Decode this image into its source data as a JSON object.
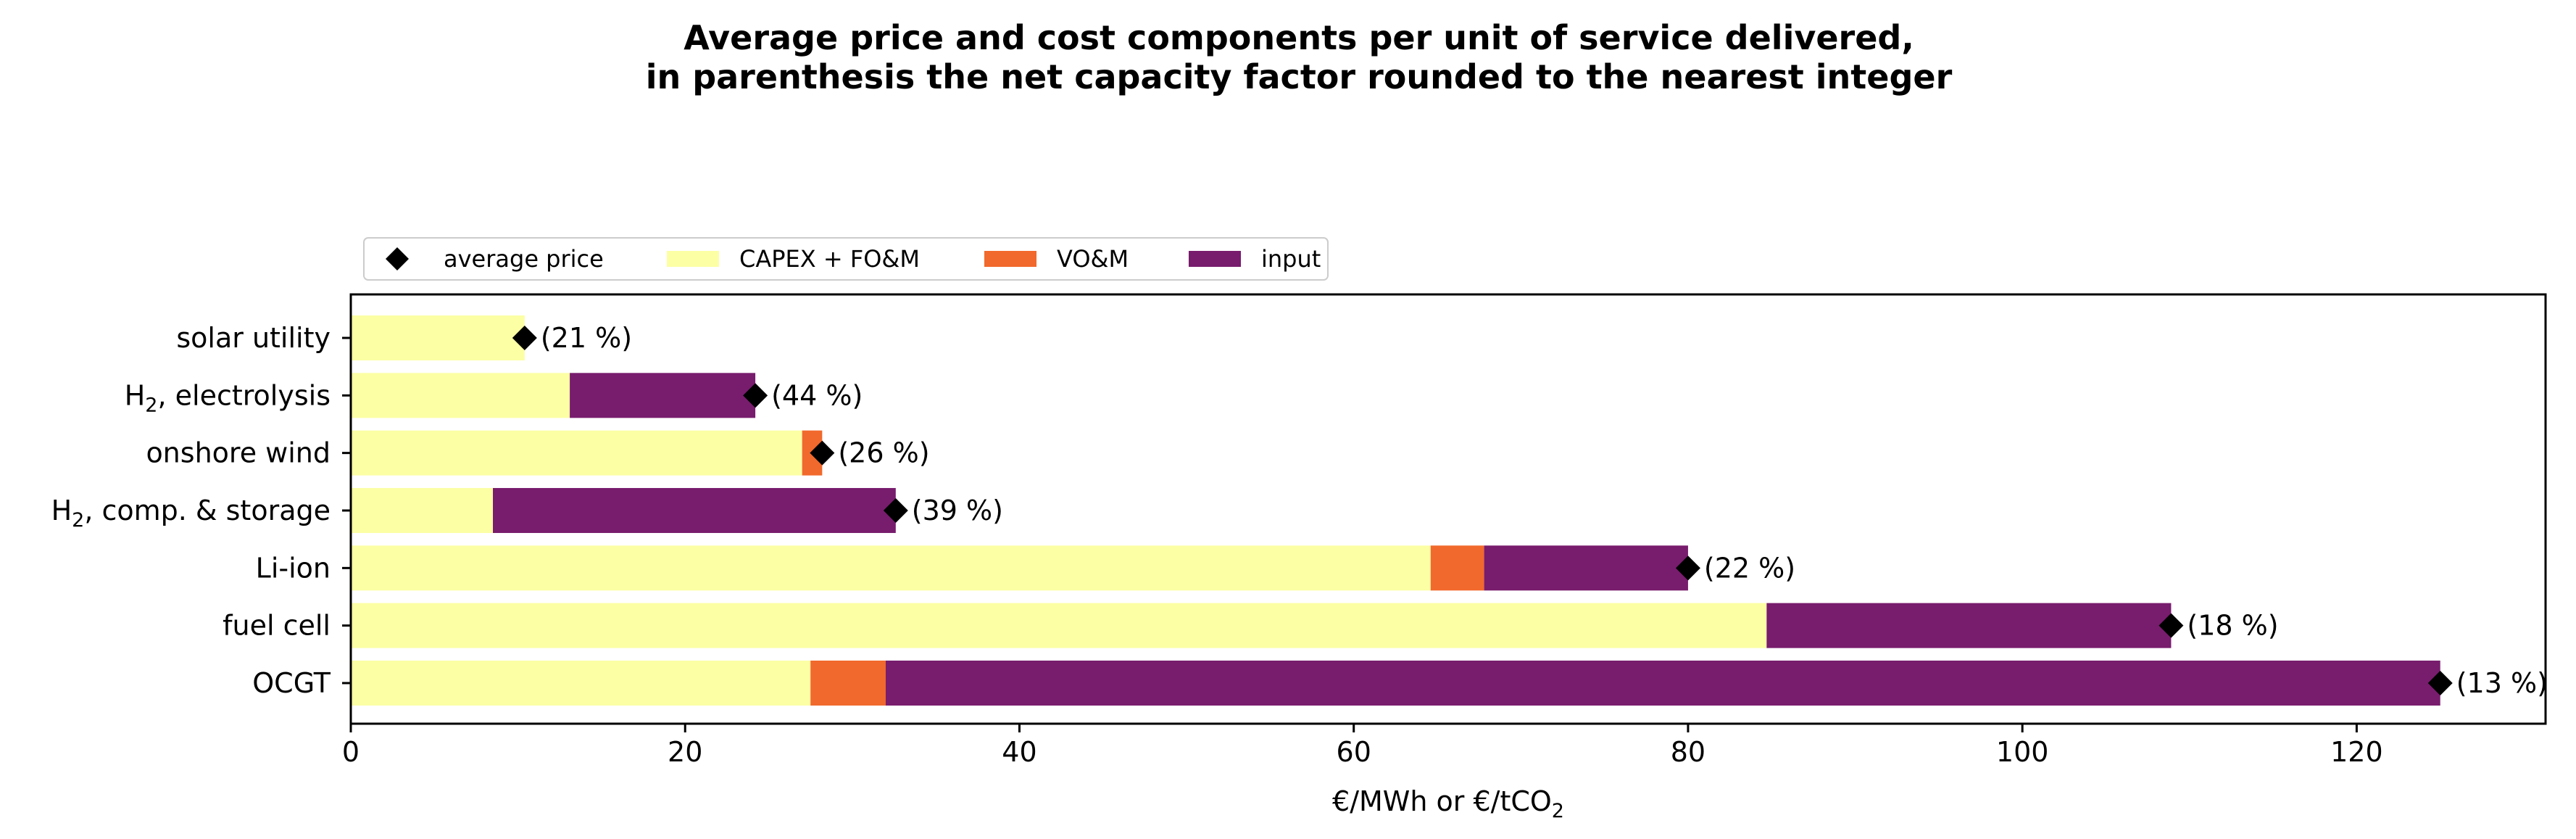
{
  "chart_data": {
    "type": "bar",
    "orientation": "horizontal",
    "stacked": true,
    "title": "Average price and cost components per unit of service delivered,\nin parenthesis the net capacity factor rounded to the nearest integer",
    "xlabel": "€/MWh or €/tCO",
    "xlabel_subscript": "2",
    "ylabel": "",
    "xlim": [
      0,
      131.3
    ],
    "xticks": [
      0,
      20,
      40,
      60,
      80,
      100,
      120
    ],
    "grid": false,
    "legend_position": "top-left",
    "categories": [
      {
        "label": "solar utility",
        "main": "solar utility",
        "sub": "",
        "rest": ""
      },
      {
        "label": "H2, electrolysis",
        "main": "H",
        "sub": "2",
        "rest": ", electrolysis"
      },
      {
        "label": "onshore wind",
        "main": "onshore wind",
        "sub": "",
        "rest": ""
      },
      {
        "label": "H2, comp. & storage",
        "main": "H",
        "sub": "2",
        "rest": ", comp. & storage"
      },
      {
        "label": "Li-ion",
        "main": "Li-ion",
        "sub": "",
        "rest": ""
      },
      {
        "label": "fuel cell",
        "main": "fuel cell",
        "sub": "",
        "rest": ""
      },
      {
        "label": "OCGT",
        "main": "OCGT",
        "sub": "",
        "rest": ""
      }
    ],
    "series": [
      {
        "name": "CAPEX + FO&M",
        "color": "#fcffa4",
        "values": [
          10.4,
          13.1,
          27.0,
          8.5,
          64.6,
          84.7,
          27.5
        ]
      },
      {
        "name": "VO&M",
        "color": "#f1692c",
        "values": [
          0,
          0,
          1.2,
          0,
          3.2,
          0,
          4.5
        ]
      },
      {
        "name": "input",
        "color": "#781c6d",
        "values": [
          0,
          11.1,
          0,
          24.1,
          12.2,
          24.2,
          93.0
        ]
      }
    ],
    "average_price": {
      "name": "average price",
      "color": "#000000",
      "marker": "diamond",
      "values": [
        10.4,
        24.2,
        28.2,
        32.6,
        80.0,
        108.9,
        125.0
      ]
    },
    "capacity_factor_labels": [
      "(21 %)",
      "(44 %)",
      "(26 %)",
      "(39 %)",
      "(22 %)",
      "(18 %)",
      "(13 %)"
    ]
  }
}
